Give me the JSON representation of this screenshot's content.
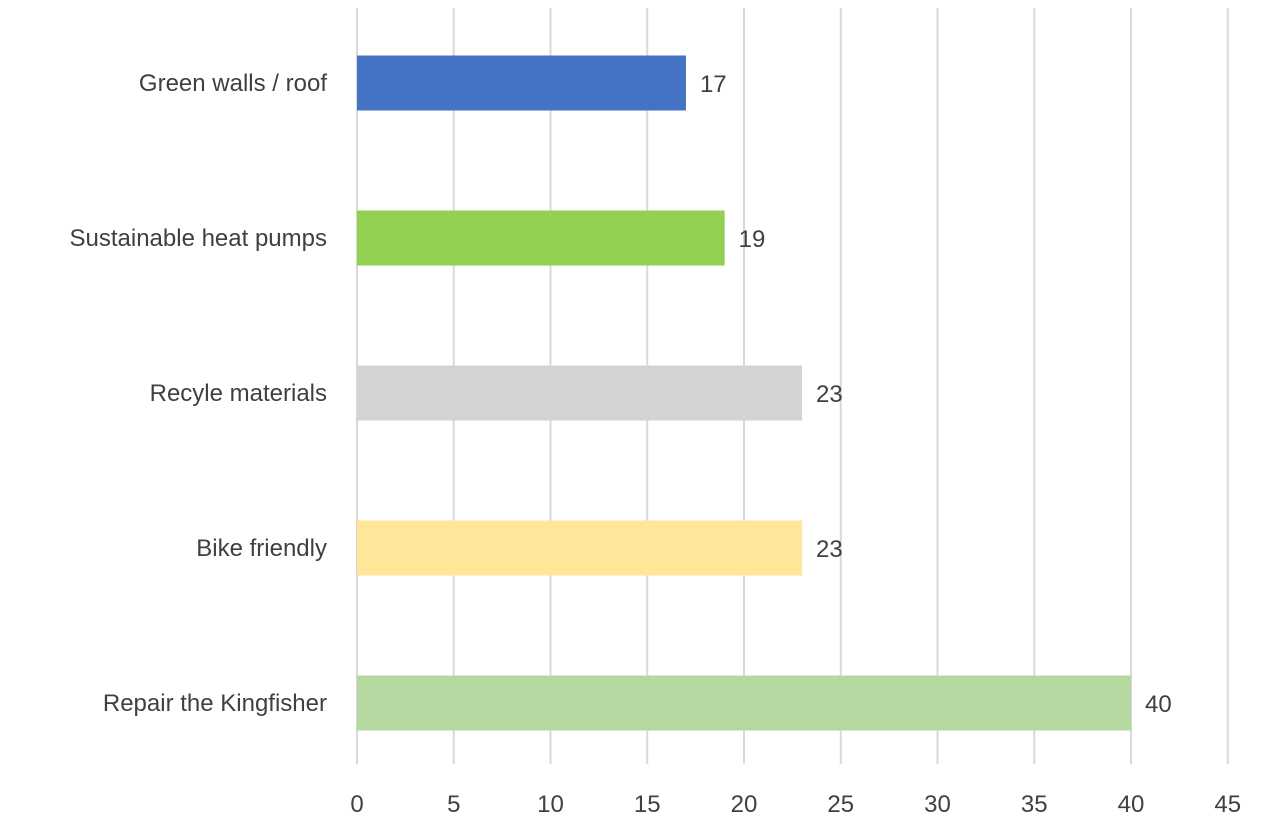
{
  "chart_data": {
    "type": "bar",
    "orientation": "horizontal",
    "categories": [
      "Green walls / roof",
      "Sustainable heat pumps",
      "Recyle materials",
      "Bike friendly",
      "Repair the Kingfisher"
    ],
    "values": [
      17,
      19,
      23,
      23,
      40
    ],
    "colors": [
      "#4472C4",
      "#92D050",
      "#D3D3D3",
      "#FFE699",
      "#B5D8A0"
    ],
    "xlim": [
      0,
      45
    ],
    "xticks": [
      0,
      5,
      10,
      15,
      20,
      25,
      30,
      35,
      40,
      45
    ],
    "grid": "vertical",
    "legend": "none",
    "data_labels": true,
    "title": "",
    "xlabel": "",
    "ylabel": ""
  }
}
